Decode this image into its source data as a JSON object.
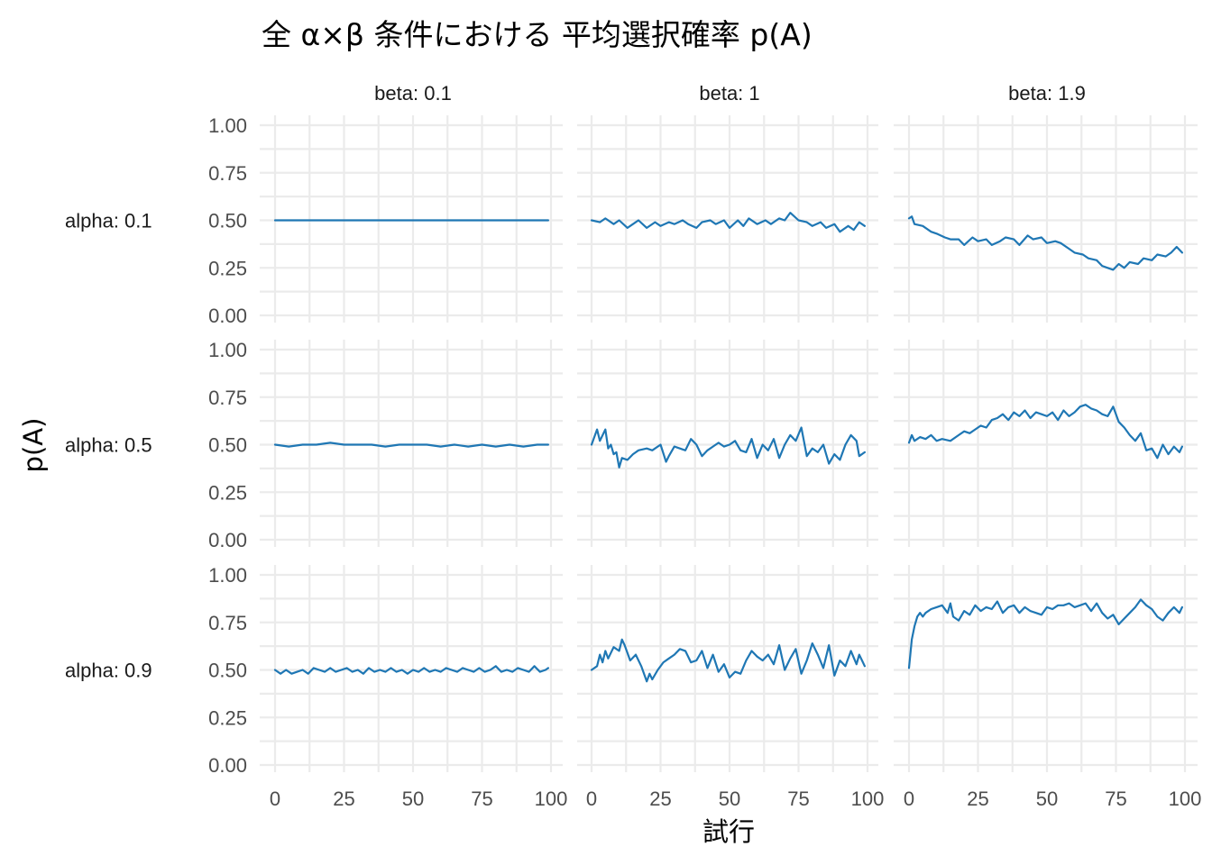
{
  "chart_data": {
    "type": "line",
    "title": "全 α×β 条件における 平均選択確率 p(A)",
    "xlabel": "試行",
    "ylabel": "p(A)",
    "xlim": [
      0,
      100
    ],
    "ylim": [
      0,
      1
    ],
    "x_ticks": [
      0,
      25,
      50,
      75,
      100
    ],
    "y_ticks": [
      "0.00",
      "0.25",
      "0.50",
      "0.75",
      "1.00"
    ],
    "grid": true,
    "line_color": "#1f77b4",
    "col_labels": [
      "beta: 0.1",
      "beta: 1",
      "beta: 1.9"
    ],
    "row_labels": [
      "alpha: 0.1",
      "alpha: 0.5",
      "alpha: 0.9"
    ],
    "panels": [
      {
        "row": 0,
        "col": 0,
        "row_label": "alpha: 0.1",
        "col_label": "beta: 0.1",
        "x": [
          0,
          5,
          10,
          15,
          20,
          25,
          30,
          35,
          40,
          45,
          50,
          55,
          60,
          65,
          70,
          75,
          80,
          85,
          90,
          95,
          99
        ],
        "y": [
          0.5,
          0.5,
          0.5,
          0.5,
          0.5,
          0.5,
          0.5,
          0.5,
          0.5,
          0.5,
          0.5,
          0.5,
          0.5,
          0.5,
          0.5,
          0.5,
          0.5,
          0.5,
          0.5,
          0.5,
          0.5
        ]
      },
      {
        "row": 0,
        "col": 1,
        "row_label": "alpha: 0.1",
        "col_label": "beta: 1",
        "x": [
          0,
          3,
          5,
          8,
          10,
          13,
          15,
          17,
          20,
          23,
          25,
          28,
          30,
          33,
          35,
          38,
          40,
          43,
          45,
          48,
          50,
          53,
          55,
          57,
          60,
          63,
          65,
          68,
          70,
          72,
          75,
          78,
          80,
          83,
          85,
          88,
          90,
          93,
          95,
          97,
          99
        ],
        "y": [
          0.5,
          0.49,
          0.51,
          0.48,
          0.5,
          0.46,
          0.48,
          0.5,
          0.46,
          0.49,
          0.47,
          0.49,
          0.48,
          0.5,
          0.48,
          0.46,
          0.49,
          0.5,
          0.48,
          0.5,
          0.46,
          0.5,
          0.47,
          0.51,
          0.48,
          0.5,
          0.48,
          0.51,
          0.5,
          0.54,
          0.5,
          0.49,
          0.47,
          0.49,
          0.46,
          0.48,
          0.44,
          0.47,
          0.45,
          0.49,
          0.47
        ]
      },
      {
        "row": 0,
        "col": 2,
        "row_label": "alpha: 0.1",
        "col_label": "beta: 1.9",
        "x": [
          0,
          1,
          2,
          5,
          8,
          10,
          13,
          15,
          18,
          20,
          23,
          25,
          28,
          30,
          33,
          35,
          38,
          40,
          43,
          45,
          48,
          50,
          53,
          55,
          58,
          60,
          63,
          65,
          68,
          70,
          72,
          74,
          76,
          78,
          80,
          83,
          85,
          88,
          90,
          93,
          95,
          97,
          99
        ],
        "y": [
          0.51,
          0.52,
          0.48,
          0.47,
          0.44,
          0.43,
          0.41,
          0.4,
          0.4,
          0.37,
          0.41,
          0.39,
          0.4,
          0.37,
          0.39,
          0.41,
          0.4,
          0.37,
          0.42,
          0.4,
          0.41,
          0.38,
          0.39,
          0.38,
          0.35,
          0.33,
          0.32,
          0.3,
          0.29,
          0.26,
          0.25,
          0.24,
          0.27,
          0.25,
          0.28,
          0.27,
          0.3,
          0.29,
          0.32,
          0.31,
          0.33,
          0.36,
          0.33
        ]
      },
      {
        "row": 1,
        "col": 0,
        "row_label": "alpha: 0.5",
        "col_label": "beta: 0.1",
        "x": [
          0,
          5,
          10,
          15,
          20,
          25,
          30,
          35,
          40,
          45,
          50,
          55,
          60,
          65,
          70,
          75,
          80,
          85,
          90,
          95,
          99
        ],
        "y": [
          0.5,
          0.49,
          0.5,
          0.5,
          0.51,
          0.5,
          0.5,
          0.5,
          0.49,
          0.5,
          0.5,
          0.5,
          0.49,
          0.5,
          0.49,
          0.5,
          0.49,
          0.5,
          0.49,
          0.5,
          0.5
        ]
      },
      {
        "row": 1,
        "col": 1,
        "row_label": "alpha: 0.5",
        "col_label": "beta: 1",
        "x": [
          0,
          2,
          3,
          5,
          6,
          7,
          8,
          9,
          10,
          11,
          13,
          15,
          17,
          20,
          22,
          25,
          27,
          28,
          30,
          32,
          34,
          36,
          38,
          40,
          42,
          44,
          46,
          48,
          50,
          52,
          54,
          56,
          58,
          60,
          62,
          64,
          66,
          68,
          70,
          72,
          74,
          76,
          78,
          80,
          82,
          84,
          86,
          88,
          90,
          92,
          94,
          96,
          97,
          99
        ],
        "y": [
          0.5,
          0.58,
          0.52,
          0.58,
          0.48,
          0.5,
          0.45,
          0.46,
          0.38,
          0.43,
          0.42,
          0.45,
          0.47,
          0.48,
          0.47,
          0.5,
          0.41,
          0.44,
          0.49,
          0.48,
          0.47,
          0.53,
          0.5,
          0.44,
          0.47,
          0.49,
          0.51,
          0.49,
          0.5,
          0.52,
          0.47,
          0.46,
          0.53,
          0.43,
          0.5,
          0.47,
          0.53,
          0.43,
          0.5,
          0.55,
          0.52,
          0.59,
          0.44,
          0.48,
          0.46,
          0.5,
          0.4,
          0.45,
          0.42,
          0.5,
          0.55,
          0.52,
          0.44,
          0.46
        ]
      },
      {
        "row": 1,
        "col": 2,
        "row_label": "alpha: 0.5",
        "col_label": "beta: 1.9",
        "x": [
          0,
          1,
          2,
          4,
          6,
          8,
          10,
          12,
          15,
          18,
          20,
          22,
          24,
          26,
          28,
          30,
          32,
          34,
          36,
          38,
          40,
          42,
          44,
          46,
          48,
          50,
          52,
          54,
          56,
          58,
          60,
          62,
          64,
          66,
          68,
          70,
          72,
          74,
          76,
          78,
          80,
          82,
          84,
          86,
          88,
          90,
          92,
          94,
          96,
          98,
          99
        ],
        "y": [
          0.51,
          0.55,
          0.52,
          0.54,
          0.53,
          0.55,
          0.52,
          0.53,
          0.52,
          0.55,
          0.57,
          0.56,
          0.58,
          0.6,
          0.59,
          0.63,
          0.64,
          0.66,
          0.63,
          0.67,
          0.65,
          0.68,
          0.64,
          0.67,
          0.66,
          0.65,
          0.67,
          0.63,
          0.68,
          0.65,
          0.67,
          0.7,
          0.71,
          0.69,
          0.68,
          0.66,
          0.65,
          0.7,
          0.62,
          0.59,
          0.55,
          0.52,
          0.56,
          0.47,
          0.48,
          0.43,
          0.5,
          0.45,
          0.49,
          0.46,
          0.49
        ]
      },
      {
        "row": 2,
        "col": 0,
        "row_label": "alpha: 0.9",
        "col_label": "beta: 0.1",
        "x": [
          0,
          2,
          4,
          6,
          8,
          10,
          12,
          14,
          16,
          18,
          20,
          22,
          24,
          26,
          28,
          30,
          32,
          34,
          36,
          38,
          40,
          42,
          44,
          46,
          48,
          50,
          52,
          54,
          56,
          58,
          60,
          62,
          64,
          66,
          68,
          70,
          72,
          74,
          76,
          78,
          80,
          82,
          84,
          86,
          88,
          90,
          92,
          94,
          96,
          98,
          99
        ],
        "y": [
          0.5,
          0.48,
          0.5,
          0.48,
          0.49,
          0.5,
          0.48,
          0.51,
          0.5,
          0.49,
          0.51,
          0.49,
          0.5,
          0.51,
          0.49,
          0.5,
          0.48,
          0.51,
          0.49,
          0.5,
          0.49,
          0.51,
          0.49,
          0.5,
          0.48,
          0.5,
          0.49,
          0.51,
          0.49,
          0.5,
          0.49,
          0.51,
          0.5,
          0.49,
          0.51,
          0.5,
          0.49,
          0.51,
          0.49,
          0.5,
          0.52,
          0.49,
          0.5,
          0.49,
          0.51,
          0.5,
          0.49,
          0.52,
          0.49,
          0.5,
          0.51
        ]
      },
      {
        "row": 2,
        "col": 1,
        "row_label": "alpha: 0.9",
        "col_label": "beta: 1",
        "x": [
          0,
          2,
          3,
          4,
          5,
          6,
          8,
          10,
          11,
          12,
          14,
          16,
          18,
          20,
          21,
          22,
          24,
          26,
          28,
          30,
          32,
          34,
          36,
          38,
          40,
          42,
          44,
          46,
          48,
          50,
          52,
          54,
          56,
          58,
          60,
          62,
          64,
          66,
          68,
          70,
          72,
          74,
          76,
          78,
          80,
          82,
          84,
          86,
          88,
          90,
          92,
          94,
          96,
          97,
          98,
          99
        ],
        "y": [
          0.5,
          0.52,
          0.58,
          0.54,
          0.6,
          0.56,
          0.62,
          0.6,
          0.66,
          0.63,
          0.55,
          0.58,
          0.52,
          0.44,
          0.48,
          0.45,
          0.5,
          0.54,
          0.56,
          0.58,
          0.61,
          0.6,
          0.54,
          0.55,
          0.6,
          0.51,
          0.58,
          0.49,
          0.53,
          0.46,
          0.49,
          0.48,
          0.55,
          0.6,
          0.57,
          0.55,
          0.58,
          0.53,
          0.63,
          0.5,
          0.56,
          0.61,
          0.48,
          0.55,
          0.64,
          0.58,
          0.51,
          0.63,
          0.47,
          0.55,
          0.52,
          0.6,
          0.53,
          0.58,
          0.55,
          0.52
        ]
      },
      {
        "row": 2,
        "col": 2,
        "row_label": "alpha: 0.9",
        "col_label": "beta: 1.9",
        "x": [
          0,
          1,
          2,
          3,
          4,
          5,
          6,
          8,
          10,
          12,
          14,
          15,
          16,
          18,
          20,
          22,
          24,
          26,
          28,
          30,
          32,
          34,
          36,
          38,
          40,
          42,
          44,
          46,
          48,
          50,
          52,
          54,
          56,
          58,
          60,
          62,
          64,
          66,
          68,
          70,
          72,
          74,
          76,
          78,
          80,
          82,
          84,
          86,
          88,
          90,
          92,
          94,
          96,
          98,
          99
        ],
        "y": [
          0.51,
          0.66,
          0.73,
          0.78,
          0.8,
          0.78,
          0.8,
          0.82,
          0.83,
          0.84,
          0.8,
          0.85,
          0.78,
          0.76,
          0.81,
          0.79,
          0.84,
          0.81,
          0.83,
          0.82,
          0.86,
          0.8,
          0.83,
          0.84,
          0.8,
          0.83,
          0.81,
          0.8,
          0.79,
          0.83,
          0.82,
          0.84,
          0.84,
          0.85,
          0.83,
          0.84,
          0.85,
          0.81,
          0.85,
          0.8,
          0.77,
          0.79,
          0.74,
          0.77,
          0.8,
          0.83,
          0.87,
          0.84,
          0.82,
          0.78,
          0.76,
          0.8,
          0.83,
          0.8,
          0.83
        ]
      }
    ]
  }
}
